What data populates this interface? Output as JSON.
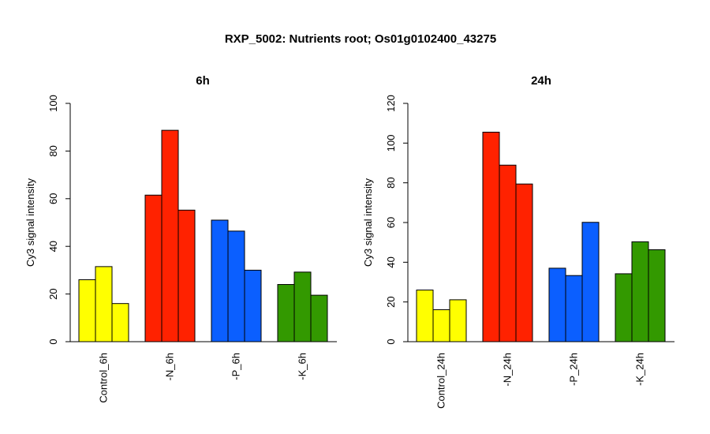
{
  "figure": {
    "title": "RXP_5002: Nutrients root; Os01g0102400_43275"
  },
  "chart_data": [
    {
      "type": "bar",
      "title": "6h",
      "ylabel": "Cy3 signal intensity",
      "ylim": [
        0,
        100
      ],
      "yticks": [
        0,
        20,
        40,
        60,
        80,
        100
      ],
      "groups": [
        {
          "label": "Control_6h",
          "color": "#ffff00",
          "values": [
            26.0,
            31.5,
            16.0
          ]
        },
        {
          "label": "-N_6h",
          "color": "#ff2200",
          "values": [
            61.5,
            88.7,
            55.2
          ]
        },
        {
          "label": "-P_6h",
          "color": "#0b5fff",
          "values": [
            51.0,
            46.4,
            30.0
          ]
        },
        {
          "label": "-K_6h",
          "color": "#339900",
          "values": [
            24.0,
            29.2,
            19.5
          ]
        }
      ]
    },
    {
      "type": "bar",
      "title": "24h",
      "ylabel": "Cy3 signal intensity",
      "ylim": [
        0,
        120
      ],
      "yticks": [
        0,
        20,
        40,
        60,
        80,
        100,
        120
      ],
      "groups": [
        {
          "label": "Control_24h",
          "color": "#ffff00",
          "values": [
            26.0,
            16.1,
            21.1
          ]
        },
        {
          "label": "-N_24h",
          "color": "#ff2200",
          "values": [
            105.5,
            88.9,
            79.4
          ]
        },
        {
          "label": "-P_24h",
          "color": "#0b5fff",
          "values": [
            37.0,
            33.3,
            60.1
          ]
        },
        {
          "label": "-K_24h",
          "color": "#339900",
          "values": [
            34.2,
            50.3,
            46.3
          ]
        }
      ]
    }
  ]
}
